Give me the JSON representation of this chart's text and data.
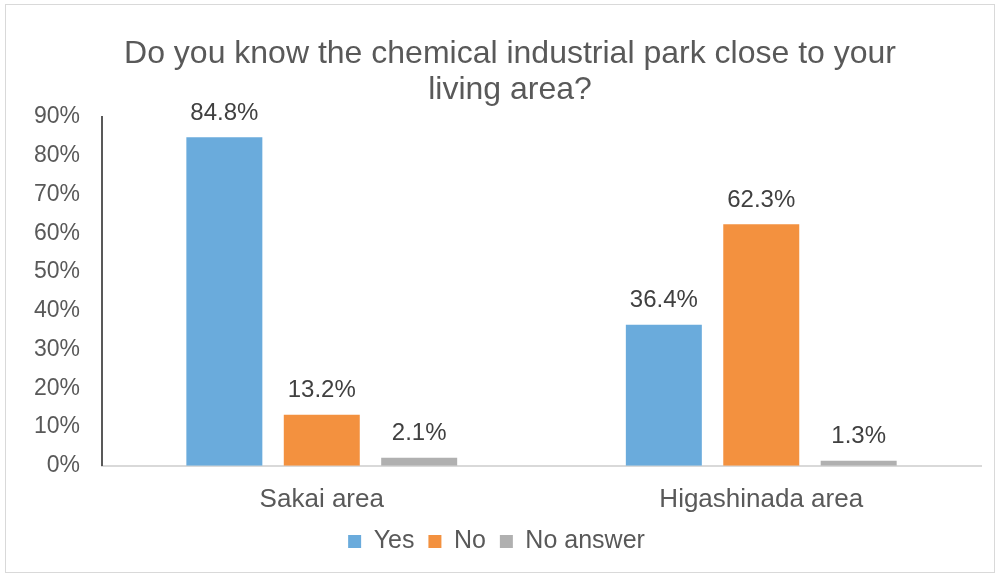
{
  "chart_data": {
    "type": "bar",
    "title": "Do you know the chemical industrial park close to your living area?",
    "categories": [
      "Sakai area",
      "Higashinada area"
    ],
    "series": [
      {
        "name": "Yes",
        "color": "#6aabdc",
        "values": [
          84.8,
          36.4
        ],
        "value_labels": [
          "84.8%",
          "36.4%"
        ]
      },
      {
        "name": "No",
        "color": "#f3913f",
        "values": [
          13.2,
          62.3
        ],
        "value_labels": [
          "13.2%",
          "62.3%"
        ]
      },
      {
        "name": "No answer",
        "color": "#b0b0b0",
        "values": [
          2.1,
          1.3
        ],
        "value_labels": [
          "2.1%",
          "1.3%"
        ]
      }
    ],
    "ylim": [
      0,
      90
    ],
    "yticks": [
      {
        "value": 0,
        "label": "0%"
      },
      {
        "value": 10,
        "label": "10%"
      },
      {
        "value": 20,
        "label": "20%"
      },
      {
        "value": 30,
        "label": "30%"
      },
      {
        "value": 40,
        "label": "40%"
      },
      {
        "value": 50,
        "label": "50%"
      },
      {
        "value": 60,
        "label": "60%"
      },
      {
        "value": 70,
        "label": "70%"
      },
      {
        "value": 80,
        "label": "80%"
      },
      {
        "value": 90,
        "label": "90%"
      }
    ],
    "grid": false,
    "legend": "bottom"
  }
}
